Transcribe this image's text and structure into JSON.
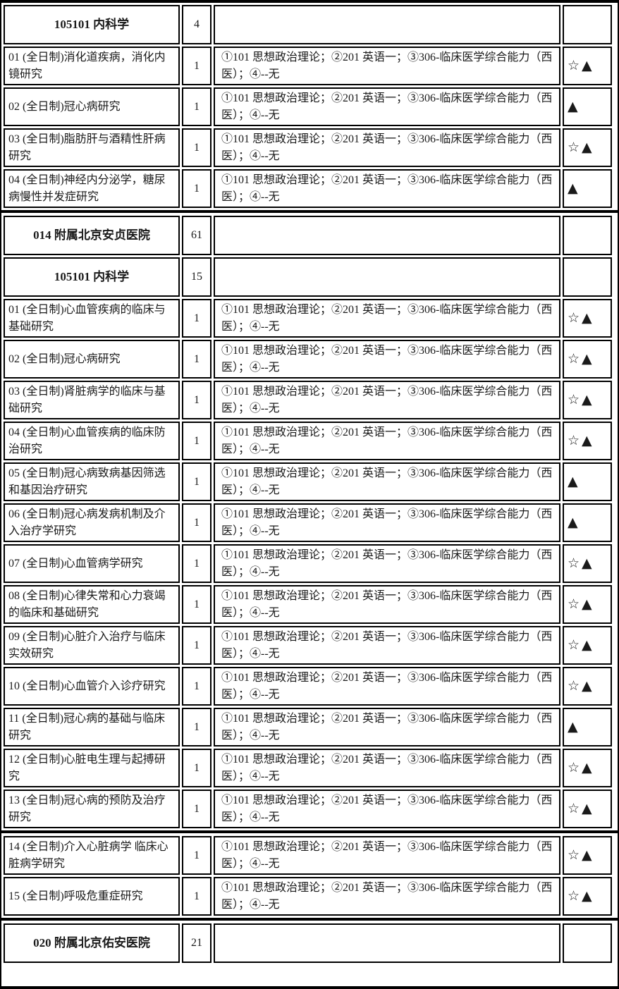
{
  "colors": {
    "border": "#000000",
    "text": "#1a1a1a",
    "background": "#ffffff"
  },
  "symbols_used": {
    "white_star": "☆",
    "black_triangle": "▲"
  },
  "table": {
    "rows": [
      {
        "kind": "section",
        "name": "105101  内科学",
        "quota": "4",
        "subjects": "",
        "remarks": ""
      },
      {
        "kind": "direction",
        "name": "01 (全日制)消化道疾病，消化内镜研究",
        "quota": "1",
        "subjects": "①101 思想政治理论；②201 英语一；③306-临床医学综合能力（西医）；④--无",
        "remarks": "☆▲"
      },
      {
        "kind": "direction",
        "name": "02 (全日制)冠心病研究",
        "quota": "1",
        "subjects": "①101 思想政治理论；②201 英语一；③306-临床医学综合能力（西医）；④--无",
        "remarks": "▲"
      },
      {
        "kind": "direction",
        "name": "03 (全日制)脂肪肝与酒精性肝病研究",
        "quota": "1",
        "subjects": "①101 思想政治理论；②201 英语一；③306-临床医学综合能力（西医）；④--无",
        "remarks": "☆▲"
      },
      {
        "kind": "direction",
        "name": "04 (全日制)神经内分泌学，糖尿病慢性并发症研究",
        "quota": "1",
        "subjects": "①101 思想政治理论；②201 英语一；③306-临床医学综合能力（西医）；④--无",
        "remarks": "▲"
      },
      {
        "kind": "divider"
      },
      {
        "kind": "section",
        "name": "014  附属北京安贞医院",
        "quota": "61",
        "subjects": "",
        "remarks": ""
      },
      {
        "kind": "section",
        "name": "105101  内科学",
        "quota": "15",
        "subjects": "",
        "remarks": ""
      },
      {
        "kind": "direction",
        "name": "01 (全日制)心血管疾病的临床与基础研究",
        "quota": "1",
        "subjects": "①101 思想政治理论；②201 英语一；③306-临床医学综合能力（西医）；④--无",
        "remarks": "☆▲"
      },
      {
        "kind": "direction",
        "name": "02 (全日制)冠心病研究",
        "quota": "1",
        "subjects": "①101 思想政治理论；②201 英语一；③306-临床医学综合能力（西医）；④--无",
        "remarks": "☆▲"
      },
      {
        "kind": "direction",
        "name": "03 (全日制)肾脏病学的临床与基础研究",
        "quota": "1",
        "subjects": "①101 思想政治理论；②201 英语一；③306-临床医学综合能力（西医）；④--无",
        "remarks": "☆▲"
      },
      {
        "kind": "direction",
        "name": "04 (全日制)心血管疾病的临床防治研究",
        "quota": "1",
        "subjects": "①101 思想政治理论；②201 英语一；③306-临床医学综合能力（西医）；④--无",
        "remarks": "☆▲"
      },
      {
        "kind": "direction",
        "name": "05 (全日制)冠心病致病基因筛选和基因治疗研究",
        "quota": "1",
        "subjects": "①101 思想政治理论；②201 英语一；③306-临床医学综合能力（西医）；④--无",
        "remarks": "▲"
      },
      {
        "kind": "direction",
        "name": "06 (全日制)冠心病发病机制及介入治疗学研究",
        "quota": "1",
        "subjects": "①101 思想政治理论；②201 英语一；③306-临床医学综合能力（西医）；④--无",
        "remarks": "▲"
      },
      {
        "kind": "direction",
        "name": "07 (全日制)心血管病学研究",
        "quota": "1",
        "subjects": "①101 思想政治理论；②201 英语一；③306-临床医学综合能力（西医）；④--无",
        "remarks": "☆▲"
      },
      {
        "kind": "direction",
        "name": "08 (全日制)心律失常和心力衰竭的临床和基础研究",
        "quota": "1",
        "subjects": "①101 思想政治理论；②201 英语一；③306-临床医学综合能力（西医）；④--无",
        "remarks": "☆▲"
      },
      {
        "kind": "direction",
        "name": "09 (全日制)心脏介入治疗与临床实效研究",
        "quota": "1",
        "subjects": "①101 思想政治理论；②201 英语一；③306-临床医学综合能力（西医）；④--无",
        "remarks": "☆▲"
      },
      {
        "kind": "direction",
        "name": "10 (全日制)心血管介入诊疗研究",
        "quota": "1",
        "subjects": "①101 思想政治理论；②201 英语一；③306-临床医学综合能力（西医）；④--无",
        "remarks": "☆▲"
      },
      {
        "kind": "direction",
        "name": "11 (全日制)冠心病的基础与临床研究",
        "quota": "1",
        "subjects": "①101 思想政治理论；②201 英语一；③306-临床医学综合能力（西医）；④--无",
        "remarks": "▲"
      },
      {
        "kind": "direction",
        "name": "12 (全日制)心脏电生理与起搏研究",
        "quota": "1",
        "subjects": "①101 思想政治理论；②201 英语一；③306-临床医学综合能力（西医）；④--无",
        "remarks": "☆▲"
      },
      {
        "kind": "direction",
        "name": "13 (全日制)冠心病的预防及治疗研究",
        "quota": "1",
        "subjects": "①101 思想政治理论；②201 英语一；③306-临床医学综合能力（西医）；④--无",
        "remarks": "☆▲"
      },
      {
        "kind": "divider"
      },
      {
        "kind": "direction",
        "name": "14 (全日制)介入心脏病学 临床心脏病学研究",
        "quota": "1",
        "subjects": "①101 思想政治理论；②201 英语一；③306-临床医学综合能力（西医）；④--无",
        "remarks": "☆▲"
      },
      {
        "kind": "direction",
        "name": "15 (全日制)呼吸危重症研究",
        "quota": "1",
        "subjects": "①101 思想政治理论；②201 英语一；③306-临床医学综合能力（西医）；④--无",
        "remarks": "☆▲"
      },
      {
        "kind": "divider"
      },
      {
        "kind": "section",
        "name": "020  附属北京佑安医院",
        "quota": "21",
        "subjects": "",
        "remarks": ""
      }
    ]
  }
}
